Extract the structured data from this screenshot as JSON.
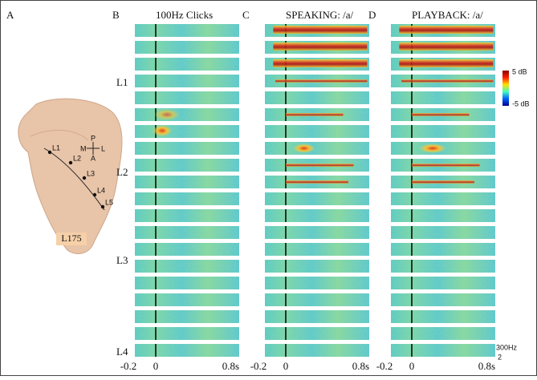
{
  "panel_a": {
    "label": "A",
    "compass": {
      "p": "P",
      "m": "M",
      "l": "L",
      "a": "A"
    },
    "electrode_labels": [
      "L1",
      "L2",
      "L3",
      "L4",
      "L5"
    ],
    "subject": "L175"
  },
  "panels": [
    {
      "label": "B",
      "title": "100Hz Clicks",
      "x_labels": [
        "-0.2",
        "0",
        "0.8s"
      ]
    },
    {
      "label": "C",
      "title": "SPEAKING: /a/",
      "x_labels": [
        "-0.2",
        "0",
        "0.8s"
      ]
    },
    {
      "label": "D",
      "title": "PLAYBACK: /a/",
      "x_labels": [
        "-0.2",
        "0",
        "0.8s"
      ]
    }
  ],
  "row_labels": [
    "L1",
    "L2",
    "L3",
    "L4"
  ],
  "colorbar": {
    "max": "5 dB",
    "min": "-5 dB"
  },
  "freq_labels": [
    "300Hz",
    "2"
  ]
}
